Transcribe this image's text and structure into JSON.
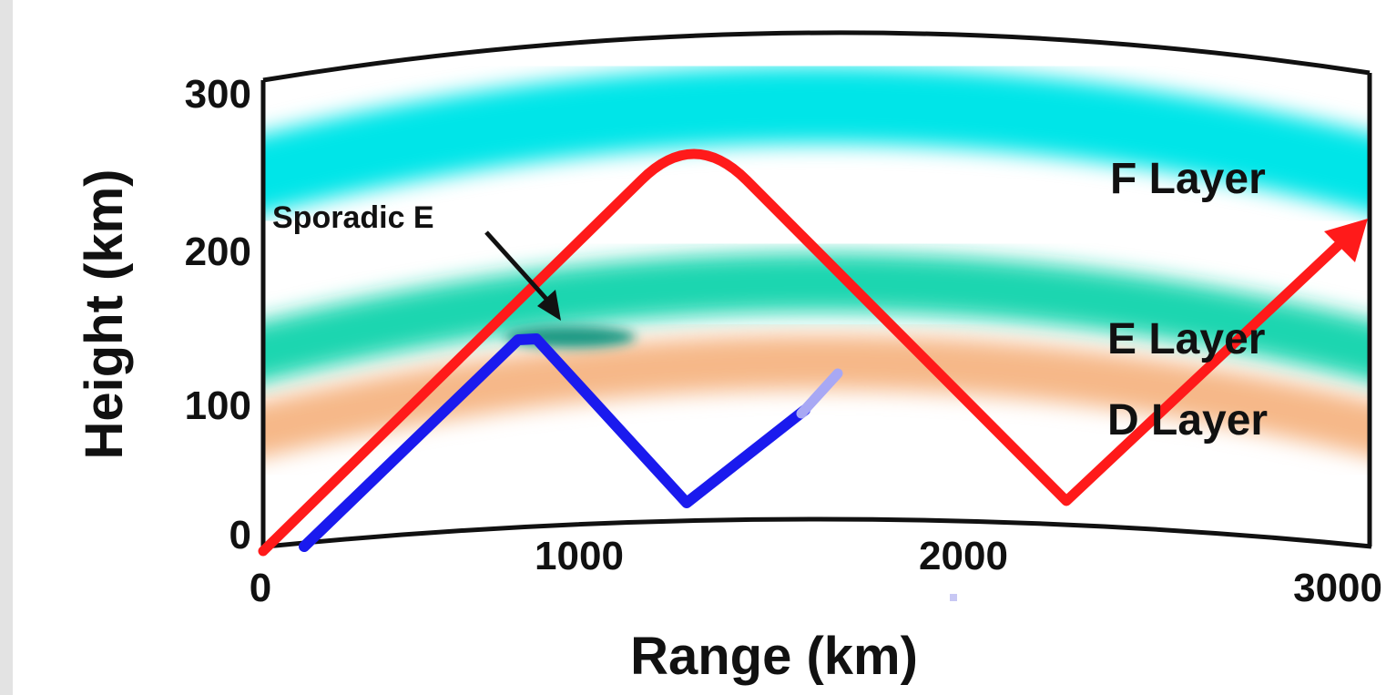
{
  "diagram": {
    "x_axis": {
      "label": "Range (km)",
      "ticks": [
        "0",
        "1000",
        "2000",
        "3000"
      ]
    },
    "y_axis": {
      "label": "Height (km)",
      "ticks": [
        "300",
        "200",
        "100",
        "0"
      ]
    },
    "layers": [
      {
        "label": "F Layer",
        "color": "#00e5e8"
      },
      {
        "label": "E Layer",
        "color": "#1fd6b0"
      },
      {
        "label": "D Layer",
        "color": "#f6b888"
      }
    ],
    "annotation": {
      "label": "Sporadic E",
      "color": "#1a9a84"
    },
    "paths": [
      {
        "id": "f-layer-path",
        "color": "#ff1a1a"
      },
      {
        "id": "sporadic-e-path",
        "color": "#1a1aee"
      }
    ]
  }
}
